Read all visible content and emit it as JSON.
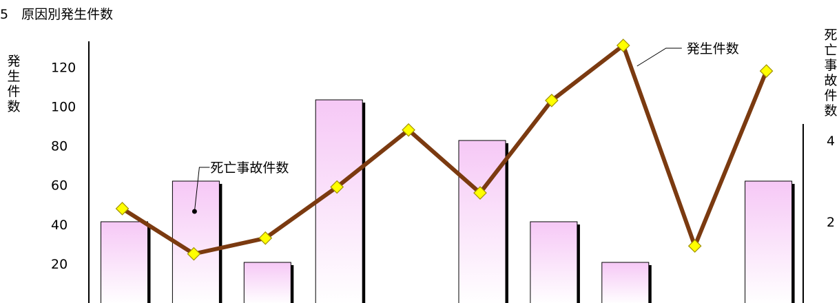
{
  "chart_data": {
    "type": "bar+line",
    "title": "5　原因別発生件数",
    "left_axis": {
      "label": "発生件数",
      "ticks": [
        "20",
        "40",
        "60",
        "80",
        "100",
        "120"
      ],
      "tick_values": [
        20,
        40,
        60,
        80,
        100,
        120
      ],
      "range": [
        0,
        133
      ]
    },
    "right_axis": {
      "label": "死亡事故件数",
      "ticks": [
        "2",
        "4"
      ],
      "tick_values": [
        2,
        4
      ],
      "range": [
        0,
        5.1
      ]
    },
    "series": [
      {
        "name": "死亡事故件数",
        "kind": "bar",
        "axis": "right",
        "values": [
          2,
          3,
          1,
          5,
          null,
          4,
          2,
          1,
          null,
          3
        ]
      },
      {
        "name": "発生件数",
        "kind": "line",
        "axis": "left",
        "values": [
          48,
          25,
          33,
          59,
          88,
          56,
          103,
          131,
          29,
          118
        ]
      }
    ],
    "colors": {
      "bar_top": "#f6c8f6",
      "bar_bottom": "#ffffff",
      "line": "#7b3a10",
      "marker": "#ffff00",
      "marker_edge": "#a09000"
    },
    "legend": "inline callouts"
  }
}
